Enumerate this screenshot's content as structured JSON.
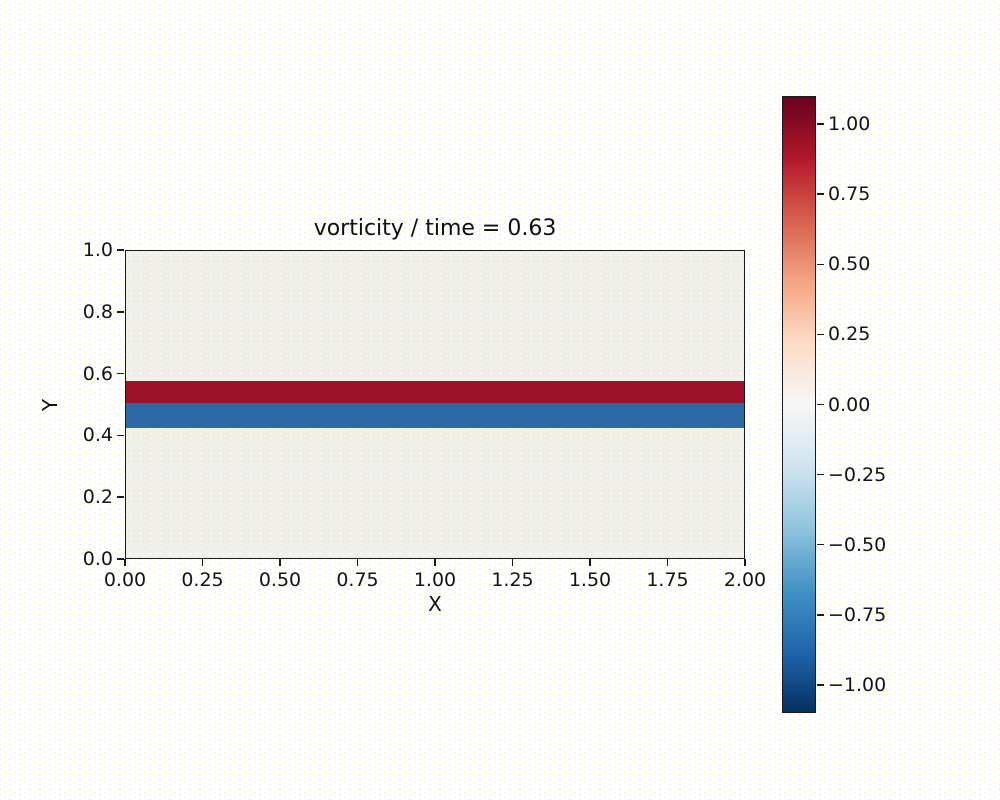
{
  "figure": {
    "background_color": "#ffffff",
    "dither_dot_colors": [
      "#fafaa0",
      "#b9f0d6"
    ]
  },
  "chart_data": {
    "type": "heatmap",
    "title": "vorticity / time = 0.63",
    "xlabel": "X",
    "ylabel": "Y",
    "xlim": [
      0.0,
      2.0
    ],
    "ylim": [
      0.0,
      1.0
    ],
    "x_ticks": [
      "0.00",
      "0.25",
      "0.50",
      "0.75",
      "1.00",
      "1.25",
      "1.50",
      "1.75",
      "2.00"
    ],
    "x_tick_values": [
      0.0,
      0.25,
      0.5,
      0.75,
      1.0,
      1.25,
      1.5,
      1.75,
      2.0
    ],
    "y_ticks": [
      "1.0",
      "0.8",
      "0.6",
      "0.4",
      "0.2",
      "0.0"
    ],
    "y_tick_values": [
      1.0,
      0.8,
      0.6,
      0.4,
      0.2,
      0.0
    ],
    "grid": false,
    "plot_background_value": 0.0,
    "plot_background_color": "#efeee9",
    "bands": [
      {
        "name": "positive-vorticity-band",
        "y_range": [
          0.505,
          0.576
        ],
        "approx_value": 1.1,
        "color": "#9c1329"
      },
      {
        "name": "negative-vorticity-band",
        "y_range": [
          0.424,
          0.505
        ],
        "approx_value": -1.1,
        "color": "#2c69a5"
      }
    ],
    "colorbar": {
      "colormap": "RdBu_r",
      "clim": [
        -1.1,
        1.1
      ],
      "tick_labels": [
        "1.00",
        "0.75",
        "0.50",
        "0.25",
        "0.00",
        "−0.25",
        "−0.50",
        "−0.75",
        "−1.00"
      ],
      "tick_values": [
        1.0,
        0.75,
        0.5,
        0.25,
        0.0,
        -0.25,
        -0.5,
        -0.75,
        -1.0
      ],
      "gradient_stops_top_to_bottom": [
        "#67001f",
        "#b2182b",
        "#d6604d",
        "#f4a582",
        "#fddbc7",
        "#f7f7f7",
        "#d1e5f0",
        "#92c5de",
        "#4393c3",
        "#2166ac",
        "#053061"
      ]
    }
  }
}
